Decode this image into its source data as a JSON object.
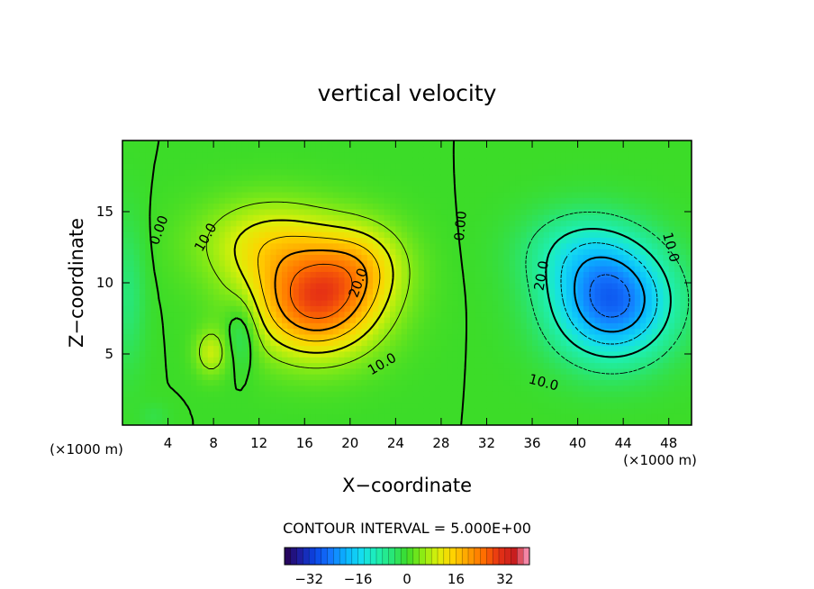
{
  "chart_data": {
    "type": "heatmap",
    "title": "vertical velocity",
    "xlabel": "X−coordinate",
    "ylabel": "Z−coordinate",
    "x_unit_left": "(×1000 m)",
    "x_unit_right": "(×1000 m)",
    "xlim": [
      0,
      50
    ],
    "ylim": [
      0,
      20
    ],
    "x_ticks": [
      4,
      8,
      12,
      16,
      20,
      24,
      28,
      32,
      36,
      40,
      44,
      48
    ],
    "y_ticks": [
      5,
      10,
      15
    ],
    "contour_interval_text": "CONTOUR INTERVAL = 5.000E+00",
    "contour_interval": 5,
    "contour_labels": [
      {
        "text": "0.00",
        "x": 3.2,
        "z": 13.7,
        "angle": -70
      },
      {
        "text": "10.0",
        "x": 7.3,
        "z": 13.2,
        "angle": -60
      },
      {
        "text": "20.0",
        "x": 20.7,
        "z": 10.0,
        "angle": -70
      },
      {
        "text": "10.0",
        "x": 22.8,
        "z": 4.3,
        "angle": -30
      },
      {
        "text": "0.00",
        "x": 29.7,
        "z": 14.0,
        "angle": -85
      },
      {
        "text": "20.0",
        "x": 36.8,
        "z": 10.5,
        "angle": -80
      },
      {
        "text": "10.0",
        "x": 48.2,
        "z": 12.5,
        "angle": 75
      },
      {
        "text": "10.0",
        "x": 37.0,
        "z": 3.0,
        "angle": 15
      }
    ],
    "field_peaks": [
      {
        "x": 17.0,
        "z": 8.5,
        "value": 27
      },
      {
        "x": 7.8,
        "z": 5.0,
        "value": 13
      },
      {
        "x": 43.5,
        "z": 7.5,
        "value": -27
      }
    ],
    "colorbar": {
      "ticks": [
        -32,
        -16,
        0,
        16,
        32
      ],
      "tick_labels": [
        "−32",
        "−16",
        "0",
        "16",
        "32"
      ],
      "range": [
        -40,
        40
      ]
    },
    "colormap": [
      "#280050",
      "#1e1ea0",
      "#0a46e6",
      "#1478ff",
      "#0ab4ff",
      "#14dcf0",
      "#1ef0b4",
      "#28e678",
      "#3cdc28",
      "#8ceb14",
      "#dcf00a",
      "#ffd200",
      "#ffa000",
      "#ff6e00",
      "#e63214",
      "#c81e1e",
      "#ffa0c8"
    ],
    "grid": false
  }
}
